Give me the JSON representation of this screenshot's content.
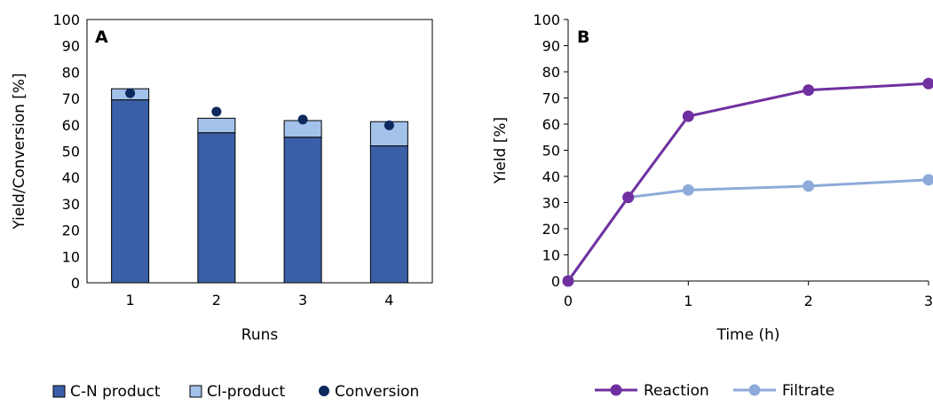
{
  "chart_data": [
    {
      "panel": "A",
      "type": "bar",
      "stacked": true,
      "xlabel": "Runs",
      "ylabel": "Yield/Conversion [%]",
      "ylim": [
        0,
        100
      ],
      "yticks": [
        0,
        10,
        20,
        30,
        40,
        50,
        60,
        70,
        80,
        90,
        100
      ],
      "categories": [
        "1",
        "2",
        "3",
        "4"
      ],
      "series": [
        {
          "name": "C-N product",
          "kind": "bar",
          "color": "#3a5fa6",
          "values": [
            69.5,
            57.0,
            55.3,
            52.0
          ]
        },
        {
          "name": "Cl-product",
          "kind": "bar",
          "color": "#a3c2ea",
          "values": [
            4.2,
            5.5,
            6.3,
            9.2
          ]
        },
        {
          "name": "Conversion",
          "kind": "marker",
          "color": "#0d2a5e",
          "values": [
            72.0,
            65.0,
            62.0,
            59.8
          ]
        }
      ],
      "legend_position": "bottom"
    },
    {
      "panel": "B",
      "type": "line",
      "xlabel": "Time (h)",
      "ylabel": "Yield [%]",
      "ylim": [
        0,
        100
      ],
      "xlim": [
        0,
        3
      ],
      "yticks": [
        0,
        10,
        20,
        30,
        40,
        50,
        60,
        70,
        80,
        90,
        100
      ],
      "xticks": [
        "0",
        "1",
        "2",
        "3"
      ],
      "x_scale_note": "0 to 1 h occupies the same width as 1 to 2 h and 2 to 3 h",
      "series": [
        {
          "name": "Reaction",
          "color": "#7030a0",
          "x": [
            0,
            0.5,
            1,
            2,
            3
          ],
          "y": [
            0,
            32.0,
            63.0,
            73.0,
            75.5
          ]
        },
        {
          "name": "Filtrate",
          "color": "#8eaadb",
          "x": [
            0,
            0.5,
            1,
            2,
            3
          ],
          "y": [
            0,
            32.0,
            34.8,
            36.3,
            38.7
          ]
        }
      ],
      "legend_position": "bottom"
    }
  ]
}
